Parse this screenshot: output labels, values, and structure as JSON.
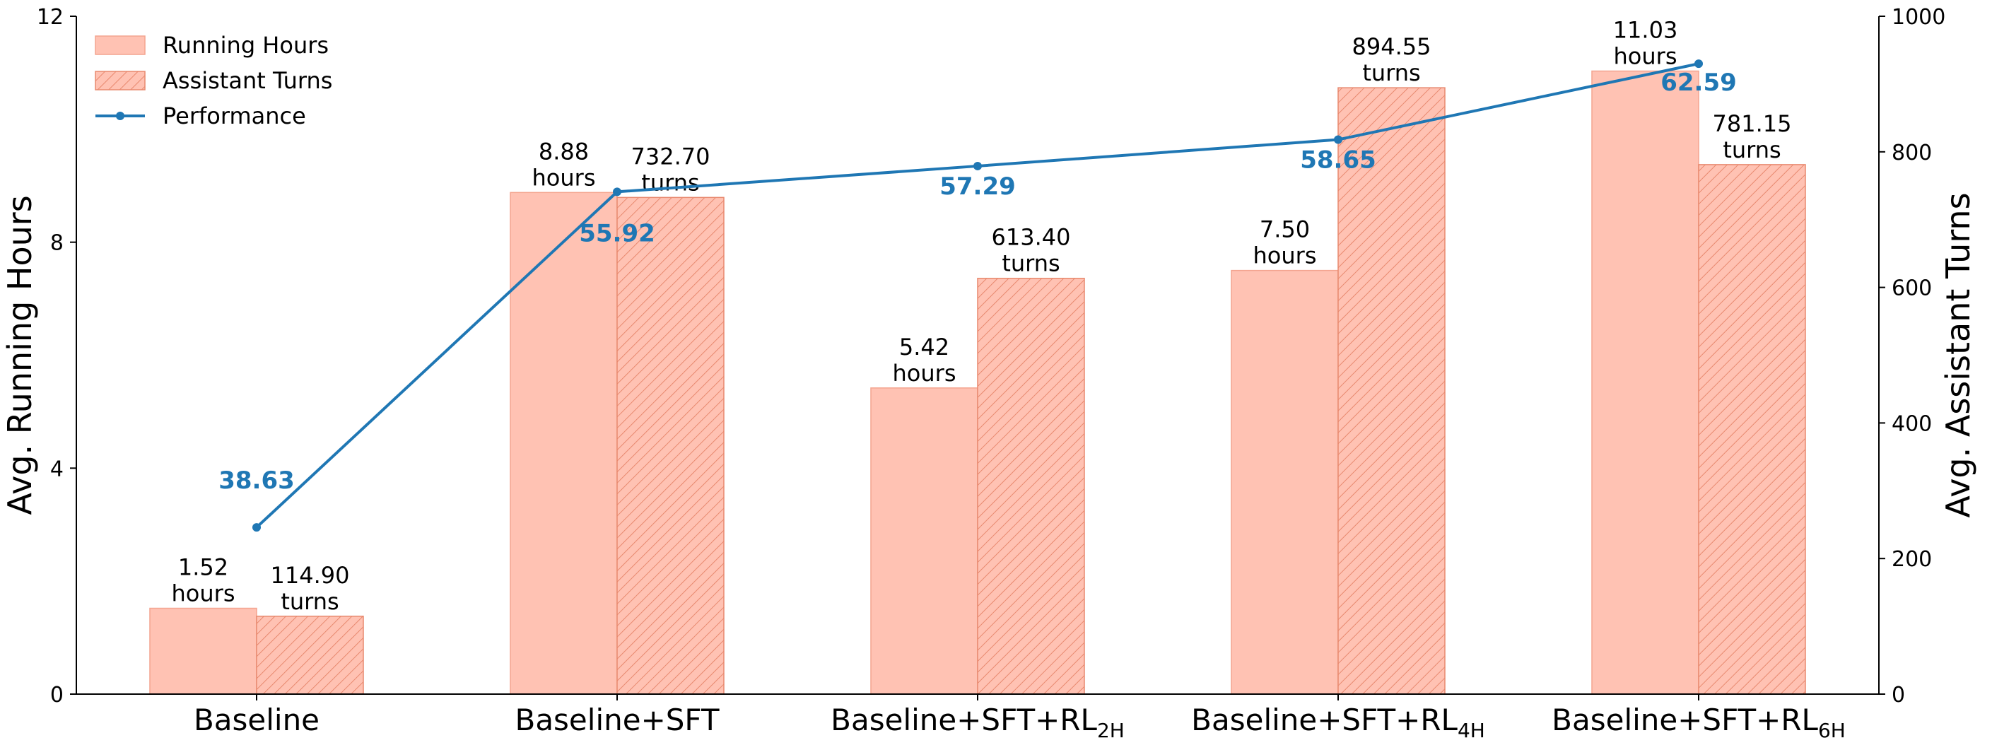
{
  "chart_data": {
    "type": "bar",
    "categories": [
      {
        "main": "Baseline",
        "sub": ""
      },
      {
        "main": "Baseline+SFT",
        "sub": ""
      },
      {
        "main": "Baseline+SFT+RL",
        "sub": "2H"
      },
      {
        "main": "Baseline+SFT+RL",
        "sub": "4H"
      },
      {
        "main": "Baseline+SFT+RL",
        "sub": "6H"
      }
    ],
    "series": [
      {
        "name": "Running Hours",
        "axis": "left",
        "values": [
          1.52,
          8.88,
          5.42,
          7.5,
          11.03
        ],
        "labels": [
          "1.52",
          "8.88",
          "5.42",
          "7.50",
          "11.03"
        ],
        "unit_label": "hours",
        "fill": "#ffc2b3",
        "edge": "#f4a48f"
      },
      {
        "name": "Assistant Turns",
        "axis": "right",
        "values": [
          114.9,
          732.7,
          613.4,
          894.55,
          781.15
        ],
        "labels": [
          "114.90",
          "732.70",
          "613.40",
          "894.55",
          "781.15"
        ],
        "unit_label": "turns",
        "fill": "#ffc2b3",
        "edge": "#e8896f",
        "hatch": "diagonal"
      },
      {
        "name": "Performance",
        "type": "line",
        "values": [
          38.63,
          55.92,
          57.29,
          58.65,
          62.59
        ],
        "labels": [
          "38.63",
          "55.92",
          "57.29",
          "58.65",
          "62.59"
        ],
        "color": "#1f77b4",
        "plotted_on_right_axis_at": [
          246,
          741,
          779,
          818,
          930
        ]
      }
    ],
    "y_left": {
      "label": "Avg. Running Hours",
      "min": 0,
      "max": 12,
      "ticks": [
        "0",
        "4",
        "8",
        "12"
      ]
    },
    "y_right": {
      "label": "Avg. Assistant Turns",
      "min": 0,
      "max": 1000,
      "ticks": [
        "0",
        "200",
        "400",
        "600",
        "800",
        "1000"
      ]
    },
    "legend": {
      "position": "top-left",
      "entries": [
        "Running Hours",
        "Assistant Turns",
        "Performance"
      ]
    },
    "grid": false
  }
}
